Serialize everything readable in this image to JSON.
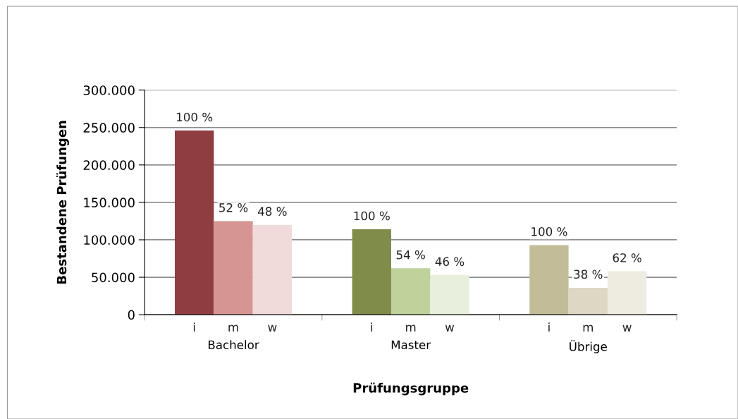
{
  "chart_data": {
    "type": "bar",
    "xlabel": "Prüfungsgruppe",
    "ylabel": "Bestandene Prüfungen",
    "categories": [
      "Bachelor",
      "Master",
      "Übrige"
    ],
    "series": [
      {
        "name": "i",
        "colors": [
          "#8e3d40",
          "#7f8c4a",
          "#c2bc98"
        ],
        "values": [
          246000,
          114000,
          93000
        ]
      },
      {
        "name": "m",
        "colors": [
          "#d69593",
          "#bfd29b",
          "#ddd7c3"
        ],
        "values": [
          125000,
          62000,
          36000
        ]
      },
      {
        "name": "w",
        "colors": [
          "#f0dada",
          "#e8efdd",
          "#eeebe0"
        ],
        "values": [
          120000,
          53000,
          58000
        ]
      }
    ],
    "annotations": [
      "100 %",
      "52 %",
      "48 %",
      "100 %",
      "54 %",
      "46 %",
      "100 %",
      "38 %",
      "62 %"
    ],
    "ylim": [
      0,
      300000
    ],
    "yticks": [
      {
        "value": 0,
        "label": "0"
      },
      {
        "value": 50000,
        "label": "50.000"
      },
      {
        "value": 100000,
        "label": "100.000"
      },
      {
        "value": 150000,
        "label": "150.000"
      },
      {
        "value": 200000,
        "label": "200.000"
      },
      {
        "value": 250000,
        "label": "250.000"
      },
      {
        "value": 300000,
        "label": "300.000"
      }
    ],
    "grid": "y",
    "legend": false
  }
}
